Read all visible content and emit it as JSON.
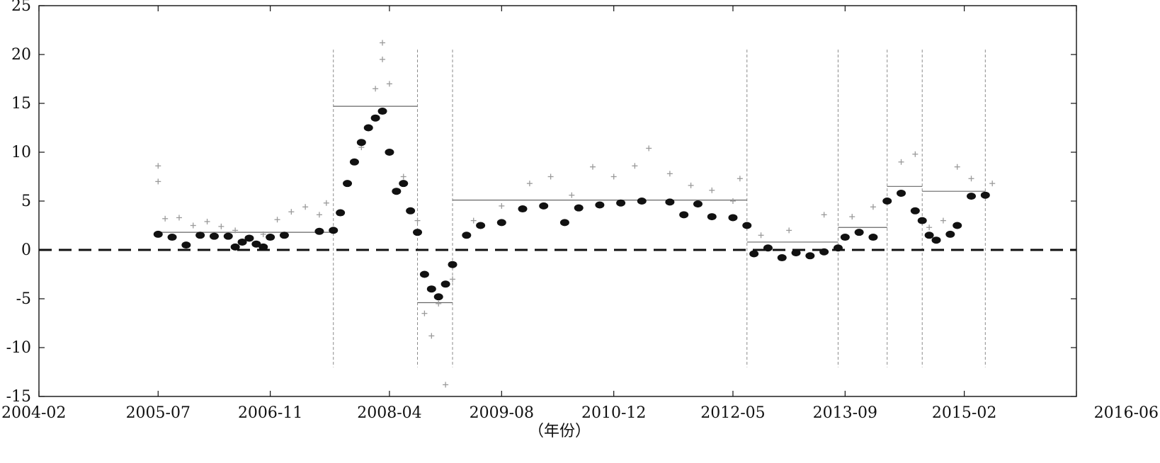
{
  "chart_data": {
    "type": "scatter",
    "title": "",
    "xlabel": "（年份）",
    "ylabel": "",
    "x_ticks": [
      "2004-02",
      "2005-07",
      "2006-11",
      "2008-04",
      "2009-08",
      "2010-12",
      "2012-05",
      "2013-09",
      "2015-02",
      "2016-06"
    ],
    "xlim": [
      "2004-02",
      "2016-06"
    ],
    "ylim": [
      -15,
      25
    ],
    "y_ticks": [
      -15,
      -10,
      -5,
      0,
      5,
      10,
      15,
      20,
      25
    ],
    "grid": false,
    "reference_line": {
      "y": 0,
      "style": "dashed"
    },
    "break_dates": [
      "2007-08",
      "2008-08",
      "2009-01",
      "2012-07",
      "2013-08",
      "2014-03",
      "2014-08",
      "2015-05"
    ],
    "regime_means": [
      {
        "start": "2005-07",
        "end": "2007-08",
        "value": 1.8
      },
      {
        "start": "2007-08",
        "end": "2008-08",
        "value": 14.7
      },
      {
        "start": "2008-08",
        "end": "2009-01",
        "value": -5.4
      },
      {
        "start": "2009-01",
        "end": "2012-07",
        "value": 5.1
      },
      {
        "start": "2012-07",
        "end": "2013-08",
        "value": 0.8
      },
      {
        "start": "2013-08",
        "end": "2014-03",
        "value": 2.3
      },
      {
        "start": "2014-03",
        "end": "2014-08",
        "value": 6.5
      },
      {
        "start": "2014-08",
        "end": "2015-05",
        "value": 6.0
      }
    ],
    "series": [
      {
        "marker": "plus",
        "color": "#9a9a9a",
        "points": [
          [
            "2005-07",
            7.0
          ],
          [
            "2005-07",
            8.6
          ],
          [
            "2005-08",
            3.2
          ],
          [
            "2005-10",
            3.3
          ],
          [
            "2005-12",
            2.5
          ],
          [
            "2006-02",
            2.9
          ],
          [
            "2006-04",
            2.4
          ],
          [
            "2006-06",
            2.0
          ],
          [
            "2006-10",
            1.6
          ],
          [
            "2006-12",
            3.1
          ],
          [
            "2007-02",
            3.9
          ],
          [
            "2007-04",
            4.4
          ],
          [
            "2007-06",
            3.6
          ],
          [
            "2007-07",
            4.8
          ],
          [
            "2007-10",
            6.8
          ],
          [
            "2007-12",
            10.5
          ],
          [
            "2008-02",
            16.5
          ],
          [
            "2008-03",
            19.5
          ],
          [
            "2008-03",
            21.2
          ],
          [
            "2008-04",
            17.0
          ],
          [
            "2008-06",
            7.5
          ],
          [
            "2008-08",
            3.0
          ],
          [
            "2008-09",
            -6.5
          ],
          [
            "2008-10",
            -8.8
          ],
          [
            "2008-11",
            -5.5
          ],
          [
            "2008-12",
            -13.8
          ],
          [
            "2009-01",
            -3.0
          ],
          [
            "2009-04",
            3.0
          ],
          [
            "2009-08",
            4.5
          ],
          [
            "2009-12",
            6.8
          ],
          [
            "2010-03",
            7.5
          ],
          [
            "2010-06",
            5.6
          ],
          [
            "2010-09",
            8.5
          ],
          [
            "2010-12",
            7.5
          ],
          [
            "2011-03",
            8.6
          ],
          [
            "2011-05",
            10.4
          ],
          [
            "2011-08",
            7.8
          ],
          [
            "2011-11",
            6.6
          ],
          [
            "2012-02",
            6.1
          ],
          [
            "2012-05",
            5.0
          ],
          [
            "2012-06",
            7.3
          ],
          [
            "2012-09",
            1.5
          ],
          [
            "2013-01",
            2.0
          ],
          [
            "2013-06",
            3.6
          ],
          [
            "2013-10",
            3.4
          ],
          [
            "2014-01",
            4.4
          ],
          [
            "2014-05",
            9.0
          ],
          [
            "2014-07",
            9.8
          ],
          [
            "2014-09",
            2.3
          ],
          [
            "2014-11",
            3.0
          ],
          [
            "2015-01",
            8.5
          ],
          [
            "2015-03",
            7.3
          ],
          [
            "2015-06",
            6.8
          ]
        ]
      },
      {
        "marker": "filled-circle",
        "color": "#111111",
        "points": [
          [
            "2005-07",
            1.6
          ],
          [
            "2005-09",
            1.3
          ],
          [
            "2005-11",
            0.5
          ],
          [
            "2006-01",
            1.5
          ],
          [
            "2006-03",
            1.4
          ],
          [
            "2006-05",
            1.4
          ],
          [
            "2006-06",
            0.3
          ],
          [
            "2006-07",
            0.8
          ],
          [
            "2006-08",
            1.2
          ],
          [
            "2006-09",
            0.6
          ],
          [
            "2006-10",
            0.3
          ],
          [
            "2006-11",
            1.3
          ],
          [
            "2007-01",
            1.5
          ],
          [
            "2007-06",
            1.9
          ],
          [
            "2007-08",
            2.0
          ],
          [
            "2007-09",
            3.8
          ],
          [
            "2007-10",
            6.8
          ],
          [
            "2007-11",
            9.0
          ],
          [
            "2007-12",
            11.0
          ],
          [
            "2008-01",
            12.5
          ],
          [
            "2008-02",
            13.5
          ],
          [
            "2008-03",
            14.2
          ],
          [
            "2008-04",
            10.0
          ],
          [
            "2008-05",
            6.0
          ],
          [
            "2008-06",
            6.8
          ],
          [
            "2008-07",
            4.0
          ],
          [
            "2008-08",
            1.8
          ],
          [
            "2008-09",
            -2.5
          ],
          [
            "2008-10",
            -4.0
          ],
          [
            "2008-11",
            -4.8
          ],
          [
            "2008-12",
            -3.5
          ],
          [
            "2009-01",
            -1.5
          ],
          [
            "2009-03",
            1.5
          ],
          [
            "2009-05",
            2.5
          ],
          [
            "2009-08",
            2.8
          ],
          [
            "2009-11",
            4.2
          ],
          [
            "2010-02",
            4.5
          ],
          [
            "2010-05",
            2.8
          ],
          [
            "2010-07",
            4.3
          ],
          [
            "2010-10",
            4.6
          ],
          [
            "2011-01",
            4.8
          ],
          [
            "2011-04",
            5.0
          ],
          [
            "2011-08",
            4.9
          ],
          [
            "2011-10",
            3.6
          ],
          [
            "2011-12",
            4.7
          ],
          [
            "2012-02",
            3.4
          ],
          [
            "2012-05",
            3.3
          ],
          [
            "2012-07",
            2.5
          ],
          [
            "2012-08",
            -0.4
          ],
          [
            "2012-10",
            0.2
          ],
          [
            "2012-12",
            -0.8
          ],
          [
            "2013-02",
            -0.3
          ],
          [
            "2013-04",
            -0.6
          ],
          [
            "2013-06",
            -0.2
          ],
          [
            "2013-08",
            0.2
          ],
          [
            "2013-09",
            1.3
          ],
          [
            "2013-11",
            1.8
          ],
          [
            "2014-01",
            1.3
          ],
          [
            "2014-03",
            5.0
          ],
          [
            "2014-05",
            5.8
          ],
          [
            "2014-07",
            4.0
          ],
          [
            "2014-08",
            3.0
          ],
          [
            "2014-09",
            1.5
          ],
          [
            "2014-10",
            1.0
          ],
          [
            "2014-12",
            1.6
          ],
          [
            "2015-01",
            2.5
          ],
          [
            "2015-03",
            5.5
          ],
          [
            "2015-05",
            5.6
          ]
        ]
      }
    ]
  }
}
